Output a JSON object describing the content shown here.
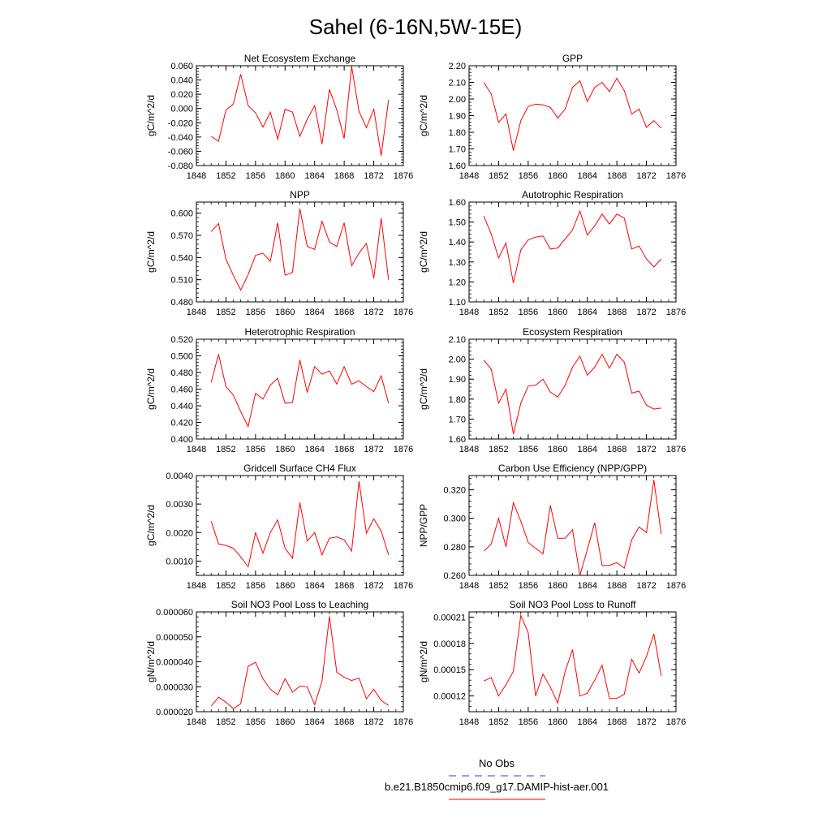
{
  "title": "Sahel (6-16N,5W-15E)",
  "colors": {
    "series": "#ff0000",
    "obs": "#3b3bd6",
    "axis": "#000000"
  },
  "legend": [
    {
      "label": "No Obs",
      "color": "#3b3bd6",
      "style": "dashed"
    },
    {
      "label": "b.e21.B1850cmip6.f09_g17.DAMIP-hist-aer.001",
      "color": "#ff0000",
      "style": "solid"
    }
  ],
  "chart_data": [
    {
      "type": "line",
      "title": "Net Ecosystem Exchange",
      "ylabel": "gC/m^2/d",
      "xlim": [
        1848,
        1876
      ],
      "ylim": [
        -0.08,
        0.06
      ],
      "xticks": [
        1848,
        1852,
        1856,
        1860,
        1864,
        1868,
        1872,
        1876
      ],
      "yticks": [
        "-0.080",
        "-0.060",
        "-0.040",
        "-0.020",
        "0.000",
        "0.020",
        "0.040",
        "0.060"
      ],
      "yticks_values": [
        -0.08,
        -0.06,
        -0.04,
        -0.02,
        0.0,
        0.02,
        0.04,
        0.06
      ],
      "x": [
        1850,
        1851,
        1852,
        1853,
        1854,
        1855,
        1856,
        1857,
        1858,
        1859,
        1860,
        1861,
        1862,
        1863,
        1864,
        1865,
        1866,
        1867,
        1868,
        1869,
        1870,
        1871,
        1872,
        1873,
        1874
      ],
      "y": [
        -0.039,
        -0.046,
        -0.002,
        0.006,
        0.048,
        0.004,
        -0.006,
        -0.026,
        -0.005,
        -0.043,
        -0.001,
        -0.005,
        -0.039,
        -0.015,
        0.004,
        -0.05,
        0.027,
        -0.002,
        -0.042,
        0.059,
        -0.004,
        -0.027,
        -0.001,
        -0.066,
        0.012
      ]
    },
    {
      "type": "line",
      "title": "GPP",
      "ylabel": "gC/m^2/d",
      "xlim": [
        1848,
        1876
      ],
      "ylim": [
        1.6,
        2.2
      ],
      "xticks": [
        1848,
        1852,
        1856,
        1860,
        1864,
        1868,
        1872,
        1876
      ],
      "yticks": [
        "1.60",
        "1.70",
        "1.80",
        "1.90",
        "2.00",
        "2.10",
        "2.20"
      ],
      "yticks_values": [
        1.6,
        1.7,
        1.8,
        1.9,
        2.0,
        2.1,
        2.2
      ],
      "x": [
        1850,
        1851,
        1852,
        1853,
        1854,
        1855,
        1856,
        1857,
        1858,
        1859,
        1860,
        1861,
        1862,
        1863,
        1864,
        1865,
        1866,
        1867,
        1868,
        1869,
        1870,
        1871,
        1872,
        1873,
        1874
      ],
      "y": [
        2.1,
        2.03,
        1.86,
        1.91,
        1.69,
        1.87,
        1.955,
        1.97,
        1.965,
        1.95,
        1.885,
        1.94,
        2.07,
        2.11,
        1.985,
        2.07,
        2.1,
        2.045,
        2.125,
        2.05,
        1.91,
        1.94,
        1.83,
        1.87,
        1.825
      ]
    },
    {
      "type": "line",
      "title": "NPP",
      "ylabel": "gC/m^2/d",
      "xlim": [
        1848,
        1876
      ],
      "ylim": [
        0.48,
        0.615
      ],
      "xticks": [
        1848,
        1852,
        1856,
        1860,
        1864,
        1868,
        1872,
        1876
      ],
      "yticks": [
        "0.480",
        "0.510",
        "0.540",
        "0.570",
        "0.600"
      ],
      "yticks_values": [
        0.48,
        0.51,
        0.54,
        0.57,
        0.6
      ],
      "x": [
        1850,
        1851,
        1852,
        1853,
        1854,
        1855,
        1856,
        1857,
        1858,
        1859,
        1860,
        1861,
        1862,
        1863,
        1864,
        1865,
        1866,
        1867,
        1868,
        1869,
        1870,
        1871,
        1872,
        1873,
        1874
      ],
      "y": [
        0.575,
        0.586,
        0.538,
        0.516,
        0.496,
        0.517,
        0.543,
        0.546,
        0.535,
        0.587,
        0.516,
        0.52,
        0.606,
        0.555,
        0.551,
        0.589,
        0.561,
        0.555,
        0.587,
        0.529,
        0.546,
        0.559,
        0.512,
        0.593,
        0.51
      ]
    },
    {
      "type": "line",
      "title": "Autotrophic Respiration",
      "ylabel": "gC/m^2/d",
      "xlim": [
        1848,
        1876
      ],
      "ylim": [
        1.1,
        1.6
      ],
      "xticks": [
        1848,
        1852,
        1856,
        1860,
        1864,
        1868,
        1872,
        1876
      ],
      "yticks": [
        "1.10",
        "1.20",
        "1.30",
        "1.40",
        "1.50",
        "1.60"
      ],
      "yticks_values": [
        1.1,
        1.2,
        1.3,
        1.4,
        1.5,
        1.6
      ],
      "x": [
        1850,
        1851,
        1852,
        1853,
        1854,
        1855,
        1856,
        1857,
        1858,
        1859,
        1860,
        1861,
        1862,
        1863,
        1864,
        1865,
        1866,
        1867,
        1868,
        1869,
        1870,
        1871,
        1872,
        1873,
        1874
      ],
      "y": [
        1.53,
        1.44,
        1.32,
        1.395,
        1.195,
        1.36,
        1.41,
        1.425,
        1.43,
        1.365,
        1.37,
        1.415,
        1.46,
        1.555,
        1.435,
        1.48,
        1.54,
        1.49,
        1.54,
        1.52,
        1.365,
        1.38,
        1.315,
        1.275,
        1.315
      ]
    },
    {
      "type": "line",
      "title": "Heterotrophic Respiration",
      "ylabel": "gC/m^2/d",
      "xlim": [
        1848,
        1876
      ],
      "ylim": [
        0.4,
        0.52
      ],
      "xticks": [
        1848,
        1852,
        1856,
        1860,
        1864,
        1868,
        1872,
        1876
      ],
      "yticks": [
        "0.400",
        "0.420",
        "0.440",
        "0.460",
        "0.480",
        "0.500",
        "0.520"
      ],
      "yticks_values": [
        0.4,
        0.42,
        0.44,
        0.46,
        0.48,
        0.5,
        0.52
      ],
      "x": [
        1850,
        1851,
        1852,
        1853,
        1854,
        1855,
        1856,
        1857,
        1858,
        1859,
        1860,
        1861,
        1862,
        1863,
        1864,
        1865,
        1866,
        1867,
        1868,
        1869,
        1870,
        1871,
        1872,
        1873,
        1874
      ],
      "y": [
        0.468,
        0.502,
        0.463,
        0.453,
        0.433,
        0.415,
        0.455,
        0.448,
        0.465,
        0.473,
        0.443,
        0.444,
        0.495,
        0.456,
        0.487,
        0.478,
        0.482,
        0.466,
        0.487,
        0.466,
        0.47,
        0.463,
        0.457,
        0.476,
        0.443
      ]
    },
    {
      "type": "line",
      "title": "Ecosystem Respiration",
      "ylabel": "gC/m^2/d",
      "xlim": [
        1848,
        1876
      ],
      "ylim": [
        1.6,
        2.1
      ],
      "xticks": [
        1848,
        1852,
        1856,
        1860,
        1864,
        1868,
        1872,
        1876
      ],
      "yticks": [
        "1.60",
        "1.70",
        "1.80",
        "1.90",
        "2.00",
        "2.10"
      ],
      "yticks_values": [
        1.6,
        1.7,
        1.8,
        1.9,
        2.0,
        2.1
      ],
      "x": [
        1850,
        1851,
        1852,
        1853,
        1854,
        1855,
        1856,
        1857,
        1858,
        1859,
        1860,
        1861,
        1862,
        1863,
        1864,
        1865,
        1866,
        1867,
        1868,
        1869,
        1870,
        1871,
        1872,
        1873,
        1874
      ],
      "y": [
        1.995,
        1.95,
        1.78,
        1.85,
        1.625,
        1.78,
        1.865,
        1.87,
        1.9,
        1.835,
        1.81,
        1.87,
        1.96,
        2.015,
        1.92,
        1.96,
        2.025,
        1.955,
        2.025,
        1.985,
        1.83,
        1.84,
        1.77,
        1.75,
        1.755
      ]
    },
    {
      "type": "line",
      "title": "Gridcell Surface CH4 Flux",
      "ylabel": "gC/m^2/d",
      "xlim": [
        1848,
        1876
      ],
      "ylim": [
        0.0005,
        0.004
      ],
      "xticks": [
        1848,
        1852,
        1856,
        1860,
        1864,
        1868,
        1872,
        1876
      ],
      "yticks": [
        "0.0010",
        "0.0020",
        "0.0030",
        "0.0040"
      ],
      "yticks_values": [
        0.001,
        0.002,
        0.003,
        0.004
      ],
      "x": [
        1850,
        1851,
        1852,
        1853,
        1854,
        1855,
        1856,
        1857,
        1858,
        1859,
        1860,
        1861,
        1862,
        1863,
        1864,
        1865,
        1866,
        1867,
        1868,
        1869,
        1870,
        1871,
        1872,
        1873,
        1874
      ],
      "y": [
        0.0024,
        0.0016,
        0.00155,
        0.00145,
        0.00115,
        0.0008,
        0.002,
        0.00128,
        0.002,
        0.00245,
        0.00145,
        0.0011,
        0.00305,
        0.0017,
        0.002,
        0.00122,
        0.0018,
        0.00185,
        0.00175,
        0.00135,
        0.0038,
        0.00198,
        0.00248,
        0.00205,
        0.00122
      ]
    },
    {
      "type": "line",
      "title": "Carbon Use Efficiency (NPP/GPP)",
      "ylabel": "NPP/GPP",
      "xlim": [
        1848,
        1876
      ],
      "ylim": [
        0.26,
        0.33
      ],
      "xticks": [
        1848,
        1852,
        1856,
        1860,
        1864,
        1868,
        1872,
        1876
      ],
      "yticks": [
        "0.260",
        "0.280",
        "0.300",
        "0.320"
      ],
      "yticks_values": [
        0.26,
        0.28,
        0.3,
        0.32
      ],
      "x": [
        1850,
        1851,
        1852,
        1853,
        1854,
        1855,
        1856,
        1857,
        1858,
        1859,
        1860,
        1861,
        1862,
        1863,
        1864,
        1865,
        1866,
        1867,
        1868,
        1869,
        1870,
        1871,
        1872,
        1873,
        1874
      ],
      "y": [
        0.277,
        0.282,
        0.3,
        0.28,
        0.311,
        0.298,
        0.283,
        0.279,
        0.275,
        0.309,
        0.286,
        0.286,
        0.292,
        0.26,
        0.278,
        0.297,
        0.267,
        0.267,
        0.269,
        0.265,
        0.285,
        0.294,
        0.29,
        0.327,
        0.289
      ]
    },
    {
      "type": "line",
      "title": "Soil NO3 Pool Loss to Leaching",
      "ylabel": "gN/m^2/d",
      "xlim": [
        1848,
        1876
      ],
      "ylim": [
        2e-05,
        6e-05
      ],
      "xticks": [
        1848,
        1852,
        1856,
        1860,
        1864,
        1868,
        1872,
        1876
      ],
      "yticks": [
        "0.000020",
        "0.000030",
        "0.000040",
        "0.000050",
        "0.000060"
      ],
      "yticks_values": [
        2e-05,
        3e-05,
        4e-05,
        5e-05,
        6e-05
      ],
      "x": [
        1850,
        1851,
        1852,
        1853,
        1854,
        1855,
        1856,
        1857,
        1858,
        1859,
        1860,
        1861,
        1862,
        1863,
        1864,
        1865,
        1866,
        1867,
        1868,
        1869,
        1870,
        1871,
        1872,
        1873,
        1874
      ],
      "y": [
        2.22e-05,
        2.58e-05,
        2.38e-05,
        2.12e-05,
        2.32e-05,
        3.82e-05,
        3.98e-05,
        3.32e-05,
        2.9e-05,
        2.68e-05,
        3.32e-05,
        2.78e-05,
        3.02e-05,
        3e-05,
        2.28e-05,
        3.22e-05,
        5.82e-05,
        3.58e-05,
        3.38e-05,
        3.25e-05,
        3.35e-05,
        2.52e-05,
        2.9e-05,
        2.45e-05,
        2.25e-05
      ]
    },
    {
      "type": "line",
      "title": "Soil NO3 Pool Loss to Runoff",
      "ylabel": "gN/m^2/d",
      "xlim": [
        1848,
        1876
      ],
      "ylim": [
        0.000102,
        0.000216
      ],
      "xticks": [
        1848,
        1852,
        1856,
        1860,
        1864,
        1868,
        1872,
        1876
      ],
      "yticks": [
        "0.00012",
        "0.00015",
        "0.00018",
        "0.00021"
      ],
      "yticks_values": [
        0.00012,
        0.00015,
        0.00018,
        0.00021
      ],
      "x": [
        1850,
        1851,
        1852,
        1853,
        1854,
        1855,
        1856,
        1857,
        1858,
        1859,
        1860,
        1861,
        1862,
        1863,
        1864,
        1865,
        1866,
        1867,
        1868,
        1869,
        1870,
        1871,
        1872,
        1873,
        1874
      ],
      "y": [
        0.000137,
        0.000141,
        0.00012,
        0.000133,
        0.000148,
        0.000212,
        0.000192,
        0.00012,
        0.000145,
        0.00013,
        0.000112,
        0.000148,
        0.000173,
        0.00012,
        0.000123,
        0.000138,
        0.000155,
        0.000117,
        0.000117,
        0.000122,
        0.000162,
        0.000146,
        0.000165,
        0.000191,
        0.000143
      ]
    }
  ]
}
